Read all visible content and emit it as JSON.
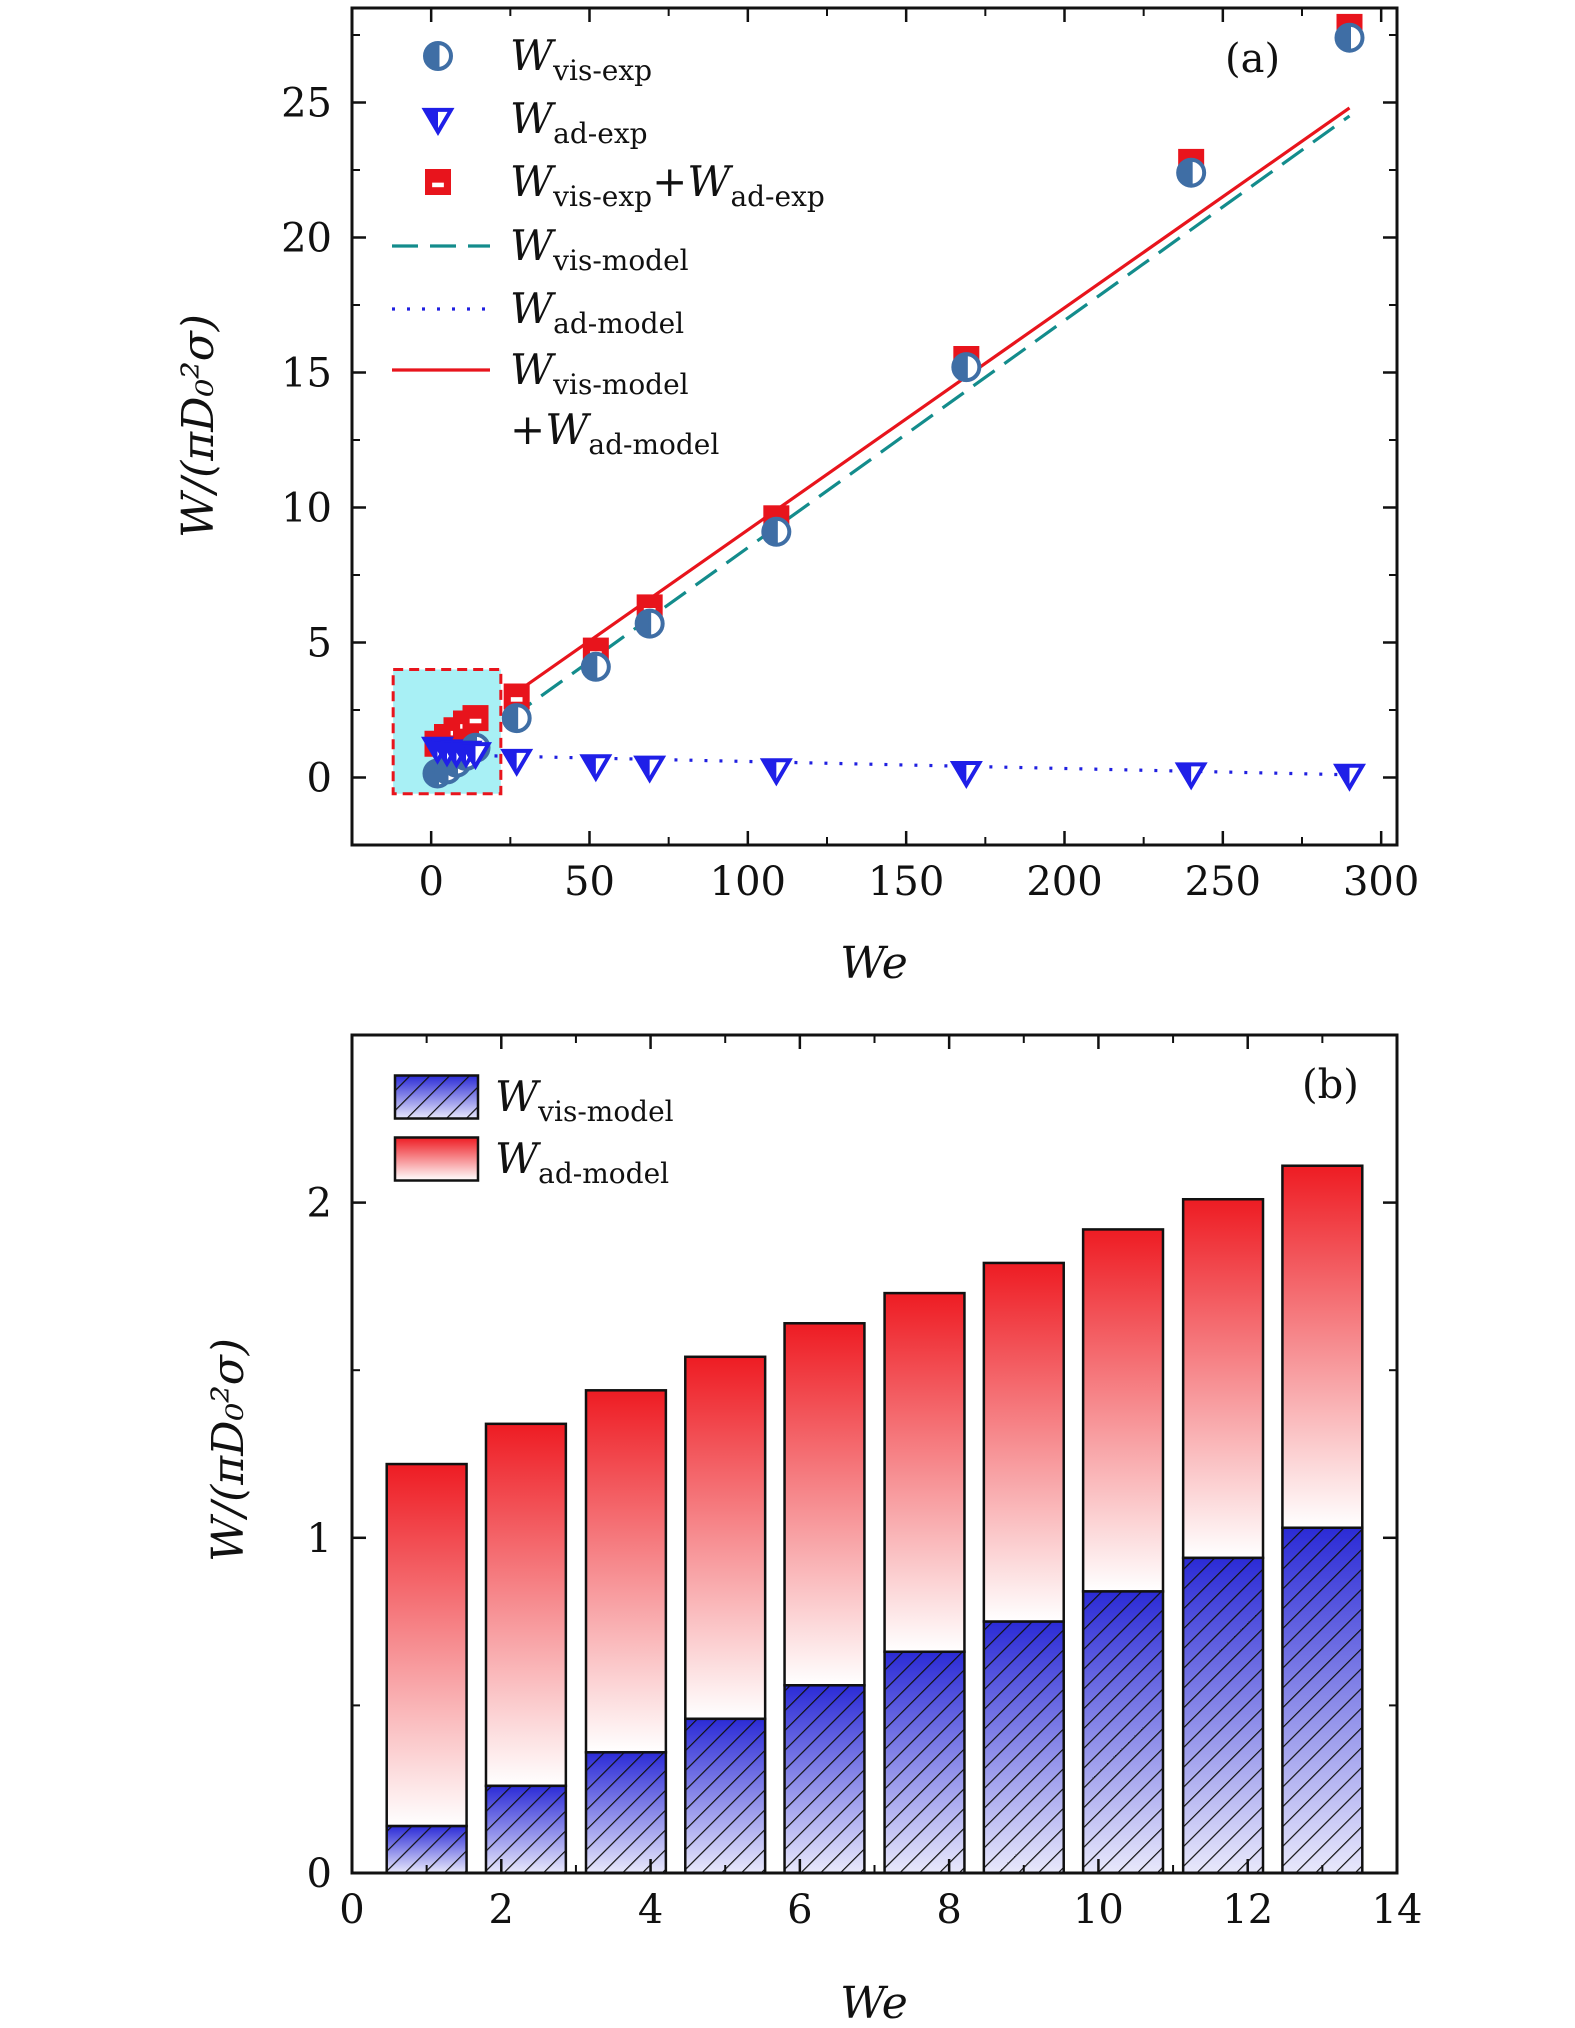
{
  "chart_data": [
    {
      "type": "scatter",
      "panel_label": "(a)",
      "xlabel": "We",
      "ylabel": "W/(πD₀²σ)",
      "xlim": [
        -25,
        305
      ],
      "ylim": [
        -2.5,
        28.5
      ],
      "xticks": [
        0,
        50,
        100,
        150,
        200,
        250,
        300
      ],
      "yticks": [
        0,
        5,
        10,
        15,
        20,
        25
      ],
      "legend_position": "top-left",
      "series": [
        {
          "name": "W",
          "sub": "vis-exp",
          "kind": "marker",
          "marker": "circle-half",
          "color": "#3f6ea5",
          "x": [
            2,
            5,
            8,
            11,
            14,
            27,
            52,
            69,
            109,
            169,
            240,
            290
          ],
          "y": [
            0.15,
            0.3,
            0.55,
            0.8,
            1.1,
            2.2,
            4.1,
            5.7,
            9.1,
            15.2,
            22.4,
            27.4
          ]
        },
        {
          "name": "W",
          "sub": "ad-exp",
          "kind": "marker",
          "marker": "triangle-down",
          "color": "#1f1fe8",
          "x": [
            2,
            5,
            8,
            11,
            14,
            27,
            52,
            69,
            109,
            169,
            240,
            290
          ],
          "y": [
            1.1,
            1.0,
            0.95,
            0.95,
            0.9,
            0.65,
            0.45,
            0.4,
            0.3,
            0.2,
            0.15,
            0.1
          ]
        },
        {
          "name": "W",
          "sub": "vis-exp",
          "sub2": "ad-exp",
          "join": "+",
          "kind": "marker",
          "marker": "square-half",
          "color": "#e8141c",
          "x": [
            2,
            5,
            8,
            11,
            14,
            27,
            52,
            69,
            109,
            169,
            240,
            290
          ],
          "y": [
            1.25,
            1.5,
            1.75,
            2.0,
            2.2,
            3.0,
            4.7,
            6.3,
            9.6,
            15.5,
            22.8,
            27.8
          ]
        },
        {
          "name": "W",
          "sub": "vis-model",
          "kind": "line",
          "dash": "dashed",
          "color": "#138c8c",
          "x": [
            25,
            290
          ],
          "y": [
            2.2,
            24.5
          ]
        },
        {
          "name": "W",
          "sub": "ad-model",
          "kind": "line",
          "dash": "dotted",
          "color": "#2020e0",
          "x": [
            20,
            290
          ],
          "y": [
            0.8,
            0.1
          ]
        },
        {
          "name": "W",
          "sub": "vis-model",
          "sub2": "ad-model",
          "join": "+",
          "kind": "line",
          "dash": "solid",
          "color": "#e8141c",
          "x": [
            25,
            290
          ],
          "y": [
            3.0,
            24.8
          ]
        }
      ],
      "inset_box": {
        "x": [
          -12,
          22
        ],
        "y": [
          -0.6,
          4.0
        ],
        "fill": "#a8f0f5",
        "stroke": "#e8141c"
      }
    },
    {
      "type": "bar",
      "stacked": true,
      "panel_label": "(b)",
      "xlabel": "We",
      "ylabel": "W/(πD₀²σ)",
      "xlim": [
        0,
        14
      ],
      "ylim": [
        0,
        2.5
      ],
      "xticks": [
        0,
        2,
        4,
        6,
        8,
        10,
        12,
        14
      ],
      "yticks": [
        0,
        1,
        2
      ],
      "legend_position": "top-left",
      "x": [
        1,
        2.33,
        3.67,
        5,
        6.33,
        7.67,
        9,
        10.33,
        11.67,
        13
      ],
      "bar_width": 1.07,
      "series": [
        {
          "name": "W",
          "sub": "vis-model",
          "pattern": "hatched-blue",
          "values": [
            0.14,
            0.26,
            0.36,
            0.46,
            0.56,
            0.66,
            0.75,
            0.84,
            0.94,
            1.03
          ]
        },
        {
          "name": "W",
          "sub": "ad-model",
          "pattern": "gradient-red",
          "values": [
            1.08,
            1.08,
            1.08,
            1.08,
            1.08,
            1.07,
            1.07,
            1.08,
            1.07,
            1.08
          ]
        }
      ]
    }
  ]
}
